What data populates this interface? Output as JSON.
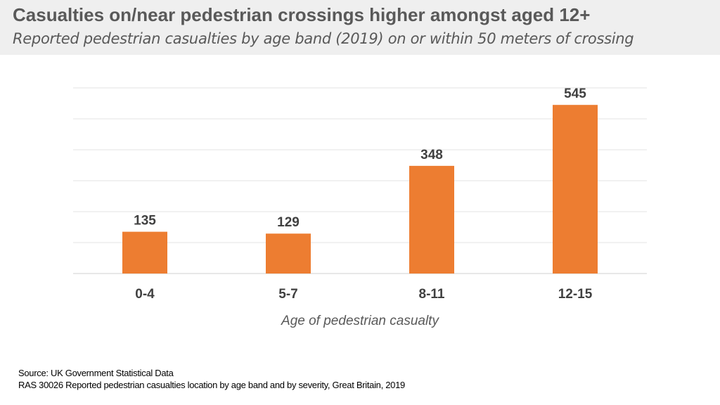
{
  "header": {
    "title": "Casualties on/near pedestrian crossings higher amongst aged 12+",
    "subtitle": "Reported pedestrian casualties by age band (2019) on or within 50 meters of crossing"
  },
  "chart_data": {
    "type": "bar",
    "title": "Casualties on/near pedestrian crossings higher amongst aged 12+",
    "subtitle": "Reported pedestrian casualties by age band (2019) on or within 50 meters of crossing",
    "categories": [
      "0-4",
      "5-7",
      "8-11",
      "12-15"
    ],
    "values": [
      135,
      129,
      348,
      545
    ],
    "xlabel": "Age of pedestrian casualty",
    "ylabel": "",
    "ylim": [
      0,
      600
    ],
    "grid_step": 100,
    "grid": true,
    "bar_color": "#ed7d31",
    "data_labels": true
  },
  "footer": {
    "source": "Source: UK Government Statistical Data",
    "reference": "RAS 30026 Reported pedestrian casualties location by age band and by severity, Great Britain, 2019"
  }
}
